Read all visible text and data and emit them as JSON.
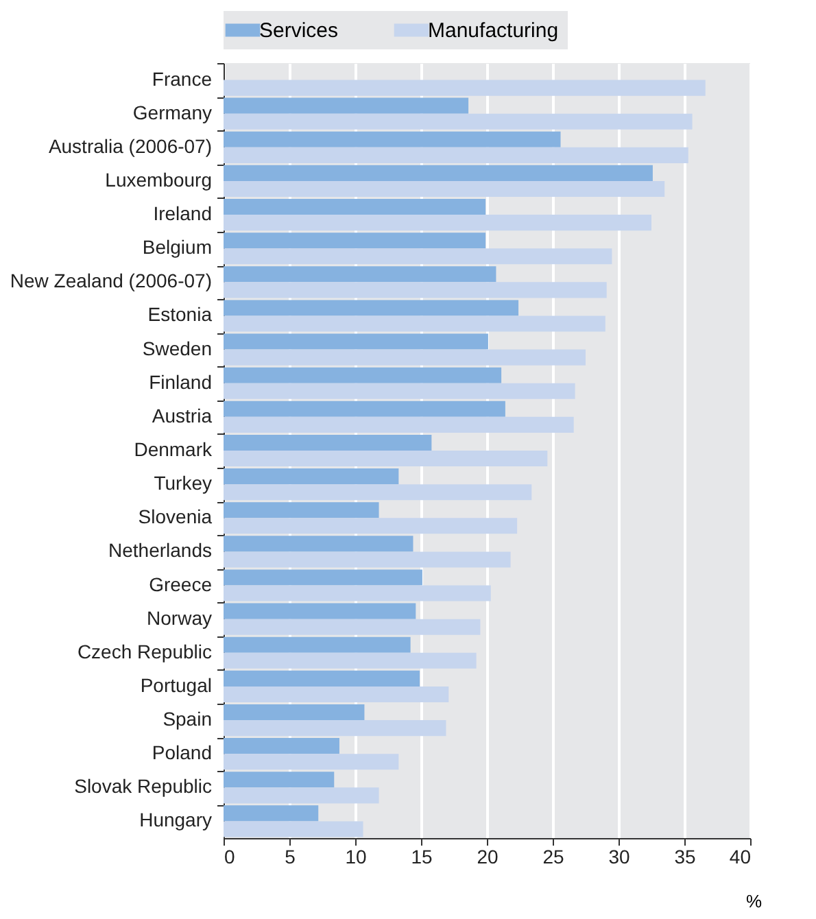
{
  "chart_data": {
    "type": "bar",
    "orientation": "horizontal",
    "xlabel": "%",
    "categories": [
      "France",
      "Germany",
      "Australia (2006-07)",
      "Luxembourg",
      "Ireland",
      "Belgium",
      "New Zealand (2006-07)",
      "Estonia",
      "Sweden",
      "Finland",
      "Austria",
      "Denmark",
      "Turkey",
      "Slovenia",
      "Netherlands",
      "Greece",
      "Norway",
      "Czech Republic",
      "Portugal",
      "Spain",
      "Poland",
      "Slovak Republic",
      "Hungary"
    ],
    "series": [
      {
        "name": "Services",
        "color": "#86b2e0",
        "values": [
          null,
          18.6,
          25.6,
          32.6,
          19.9,
          19.9,
          20.7,
          22.4,
          20.1,
          21.1,
          21.4,
          15.8,
          13.3,
          11.8,
          14.4,
          15.1,
          14.6,
          14.2,
          14.9,
          10.7,
          8.8,
          8.4,
          7.2
        ]
      },
      {
        "name": "Manufacturing",
        "color": "#c6d5ee",
        "values": [
          36.6,
          35.6,
          35.3,
          33.5,
          32.5,
          29.5,
          29.1,
          29.0,
          27.5,
          26.7,
          26.6,
          24.6,
          23.4,
          22.3,
          21.8,
          20.3,
          19.5,
          19.2,
          17.1,
          16.9,
          13.3,
          11.8,
          10.6
        ]
      }
    ],
    "xlim": [
      0,
      40
    ],
    "xticks": [
      0,
      5,
      10,
      15,
      20,
      25,
      30,
      35,
      40
    ],
    "grid": "x",
    "legend": "top"
  }
}
